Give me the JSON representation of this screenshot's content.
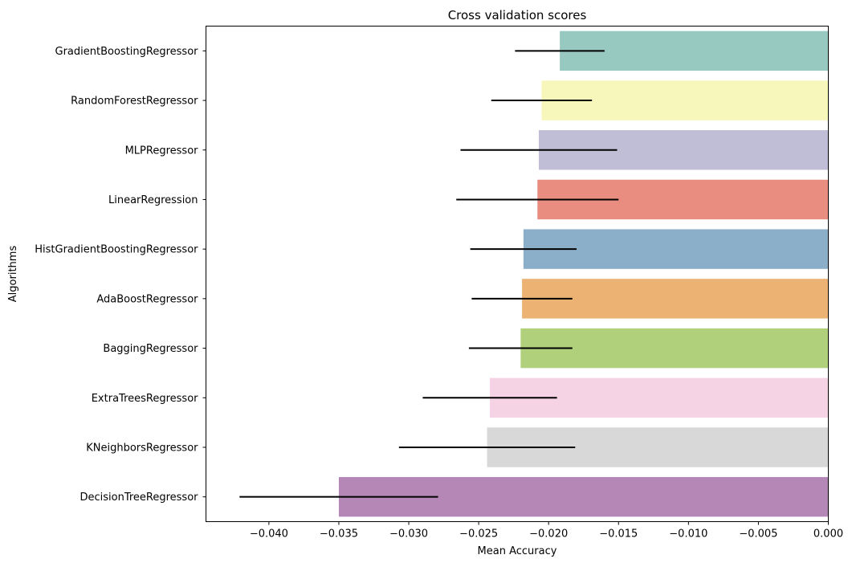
{
  "chart_data": {
    "type": "bar",
    "orientation": "horizontal",
    "title": "Cross validation scores",
    "xlabel": "Mean Accuracy",
    "ylabel": "Algorithms",
    "xlim": [
      -0.0445,
      0.0
    ],
    "xticks": [
      -0.04,
      -0.035,
      -0.03,
      -0.025,
      -0.02,
      -0.015,
      -0.01,
      -0.005,
      0.0
    ],
    "xtick_labels": [
      "−0.040",
      "−0.035",
      "−0.030",
      "−0.025",
      "−0.020",
      "−0.015",
      "−0.010",
      "−0.005",
      "0.000"
    ],
    "grid": false,
    "categories": [
      "GradientBoostingRegressor",
      "RandomForestRegressor",
      "MLPRegressor",
      "LinearRegression",
      "HistGradientBoostingRegressor",
      "AdaBoostRegressor",
      "BaggingRegressor",
      "ExtraTreesRegressor",
      "KNeighborsRegressor",
      "DecisionTreeRegressor"
    ],
    "values": [
      -0.0192,
      -0.0205,
      -0.0207,
      -0.0208,
      -0.0218,
      -0.0219,
      -0.022,
      -0.0242,
      -0.0244,
      -0.035
    ],
    "errors": [
      0.0032,
      0.0036,
      0.0056,
      0.0058,
      0.0038,
      0.0036,
      0.0037,
      0.0048,
      0.0063,
      0.0071
    ],
    "colors": [
      "#98c9c1",
      "#f7f6bb",
      "#c0bdd6",
      "#e98d81",
      "#8baec9",
      "#ebb273",
      "#b0d07b",
      "#f5d2e4",
      "#d8d8d8",
      "#b587b6"
    ],
    "errorbar_color": "#000000"
  }
}
